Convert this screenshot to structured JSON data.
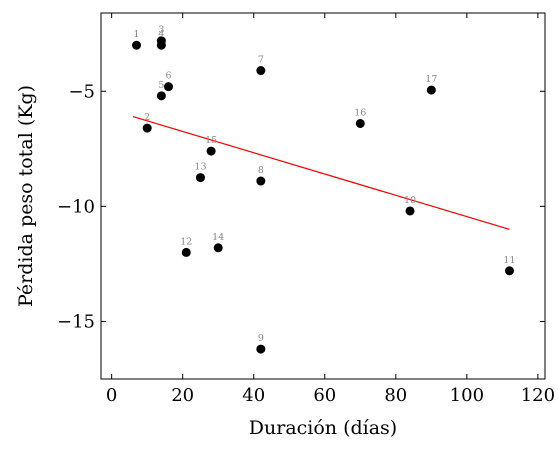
{
  "chart_data": {
    "type": "scatter",
    "title": "",
    "xlabel": "Duración (días)",
    "ylabel": "Pérdida peso total (Kg)",
    "xlim": [
      -3,
      122
    ],
    "ylim": [
      -17.5,
      -1.6
    ],
    "xticks": [
      0,
      20,
      40,
      60,
      80,
      100,
      120
    ],
    "xtick_labels": [
      "0",
      "20",
      "40",
      "60",
      "80",
      "100",
      "120"
    ],
    "yticks": [
      -5,
      -10,
      -15
    ],
    "ytick_labels": [
      "−5",
      "−10",
      "−15"
    ],
    "grid": false,
    "series": [
      {
        "color": "#000000",
        "points": [
          {
            "label": "1",
            "x": 7,
            "y": -3.0
          },
          {
            "label": "2",
            "x": 10,
            "y": -6.6
          },
          {
            "label": "3",
            "x": 14,
            "y": -2.8
          },
          {
            "label": "4",
            "x": 14,
            "y": -3.0
          },
          {
            "label": "5",
            "x": 14,
            "y": -5.2
          },
          {
            "label": "6",
            "x": 16,
            "y": -4.8
          },
          {
            "label": "7",
            "x": 42,
            "y": -4.1
          },
          {
            "label": "8",
            "x": 42,
            "y": -8.9
          },
          {
            "label": "9",
            "x": 42,
            "y": -16.2
          },
          {
            "label": "10",
            "x": 84,
            "y": -10.2
          },
          {
            "label": "11",
            "x": 112,
            "y": -12.8
          },
          {
            "label": "12",
            "x": 21,
            "y": -12.0
          },
          {
            "label": "13",
            "x": 25,
            "y": -8.75
          },
          {
            "label": "14",
            "x": 30,
            "y": -11.8
          },
          {
            "label": "15",
            "x": 28,
            "y": -7.6
          },
          {
            "label": "16",
            "x": 70,
            "y": -6.4
          },
          {
            "label": "17",
            "x": 90,
            "y": -4.95
          }
        ]
      }
    ],
    "trendline": {
      "color": "#ff0000",
      "x": [
        6,
        112
      ],
      "y": [
        -6.1,
        -11.0
      ]
    }
  }
}
